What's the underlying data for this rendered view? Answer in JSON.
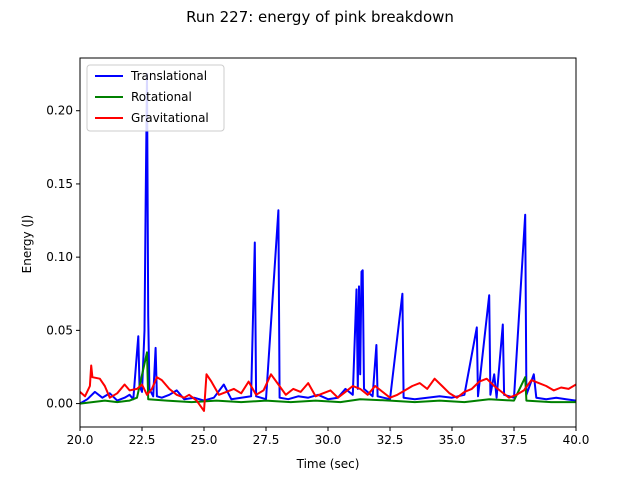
{
  "chart_data": {
    "type": "line",
    "title": "Run 227: energy of pink breakdown",
    "xlabel": "Time (sec)",
    "ylabel": "Energy (J)",
    "xlim": [
      20.0,
      40.0
    ],
    "ylim": [
      -0.016,
      0.236
    ],
    "xticks": [
      20.0,
      22.5,
      25.0,
      27.5,
      30.0,
      32.5,
      35.0,
      37.5,
      40.0
    ],
    "xtick_labels": [
      "20.0",
      "22.5",
      "25.0",
      "27.5",
      "30.0",
      "32.5",
      "35.0",
      "37.5",
      "40.0"
    ],
    "yticks": [
      0.0,
      0.05,
      0.1,
      0.15,
      0.2
    ],
    "ytick_labels": [
      "0.00",
      "0.05",
      "0.10",
      "0.15",
      "0.20"
    ],
    "grid": false,
    "legend_position": "top-left",
    "series": [
      {
        "name": "Translational",
        "color": "#0000ff",
        "points": [
          [
            20.0,
            0.0
          ],
          [
            20.3,
            0.003
          ],
          [
            20.6,
            0.008
          ],
          [
            20.9,
            0.004
          ],
          [
            21.2,
            0.007
          ],
          [
            21.5,
            0.002
          ],
          [
            21.8,
            0.004
          ],
          [
            22.0,
            0.006
          ],
          [
            22.15,
            0.003
          ],
          [
            22.3,
            0.035
          ],
          [
            22.35,
            0.046
          ],
          [
            22.4,
            0.012
          ],
          [
            22.5,
            0.008
          ],
          [
            22.6,
            0.05
          ],
          [
            22.65,
            0.14
          ],
          [
            22.7,
            0.225
          ],
          [
            22.75,
            0.06
          ],
          [
            22.8,
            0.01
          ],
          [
            22.95,
            0.005
          ],
          [
            23.05,
            0.038
          ],
          [
            23.1,
            0.005
          ],
          [
            23.3,
            0.004
          ],
          [
            23.6,
            0.006
          ],
          [
            23.9,
            0.009
          ],
          [
            24.2,
            0.003
          ],
          [
            24.6,
            0.004
          ],
          [
            25.0,
            0.002
          ],
          [
            25.4,
            0.004
          ],
          [
            25.8,
            0.013
          ],
          [
            26.1,
            0.003
          ],
          [
            26.5,
            0.004
          ],
          [
            26.9,
            0.005
          ],
          [
            27.05,
            0.11
          ],
          [
            27.1,
            0.005
          ],
          [
            27.5,
            0.003
          ],
          [
            28.0,
            0.132
          ],
          [
            28.05,
            0.004
          ],
          [
            28.4,
            0.003
          ],
          [
            28.8,
            0.005
          ],
          [
            29.2,
            0.004
          ],
          [
            29.6,
            0.006
          ],
          [
            30.0,
            0.003
          ],
          [
            30.4,
            0.004
          ],
          [
            30.7,
            0.01
          ],
          [
            31.0,
            0.006
          ],
          [
            31.15,
            0.078
          ],
          [
            31.2,
            0.01
          ],
          [
            31.25,
            0.08
          ],
          [
            31.3,
            0.02
          ],
          [
            31.35,
            0.09
          ],
          [
            31.4,
            0.091
          ],
          [
            31.45,
            0.01
          ],
          [
            31.8,
            0.005
          ],
          [
            31.95,
            0.04
          ],
          [
            32.0,
            0.005
          ],
          [
            32.5,
            0.003
          ],
          [
            33.0,
            0.075
          ],
          [
            33.05,
            0.004
          ],
          [
            33.5,
            0.003
          ],
          [
            34.0,
            0.004
          ],
          [
            34.5,
            0.005
          ],
          [
            35.0,
            0.004
          ],
          [
            35.5,
            0.006
          ],
          [
            36.0,
            0.052
          ],
          [
            36.05,
            0.005
          ],
          [
            36.5,
            0.074
          ],
          [
            36.55,
            0.006
          ],
          [
            36.7,
            0.02
          ],
          [
            36.8,
            0.004
          ],
          [
            37.05,
            0.054
          ],
          [
            37.1,
            0.006
          ],
          [
            37.5,
            0.004
          ],
          [
            37.95,
            0.129
          ],
          [
            38.0,
            0.006
          ],
          [
            38.3,
            0.02
          ],
          [
            38.4,
            0.004
          ],
          [
            38.8,
            0.003
          ],
          [
            39.2,
            0.004
          ],
          [
            39.6,
            0.003
          ],
          [
            40.0,
            0.002
          ]
        ]
      },
      {
        "name": "Rotational",
        "color": "#008000",
        "points": [
          [
            20.0,
            0.0
          ],
          [
            20.5,
            0.001
          ],
          [
            21.0,
            0.002
          ],
          [
            21.5,
            0.001
          ],
          [
            22.0,
            0.002
          ],
          [
            22.3,
            0.004
          ],
          [
            22.7,
            0.035
          ],
          [
            22.75,
            0.003
          ],
          [
            23.5,
            0.002
          ],
          [
            24.5,
            0.001
          ],
          [
            25.5,
            0.002
          ],
          [
            26.5,
            0.001
          ],
          [
            27.5,
            0.002
          ],
          [
            28.5,
            0.001
          ],
          [
            29.5,
            0.002
          ],
          [
            30.5,
            0.001
          ],
          [
            31.3,
            0.003
          ],
          [
            32.5,
            0.002
          ],
          [
            33.5,
            0.001
          ],
          [
            34.5,
            0.002
          ],
          [
            35.5,
            0.001
          ],
          [
            36.5,
            0.003
          ],
          [
            37.5,
            0.002
          ],
          [
            37.95,
            0.018
          ],
          [
            38.0,
            0.002
          ],
          [
            39.0,
            0.001
          ],
          [
            40.0,
            0.001
          ]
        ]
      },
      {
        "name": "Gravitational",
        "color": "#ff0000",
        "points": [
          [
            20.0,
            0.008
          ],
          [
            20.2,
            0.005
          ],
          [
            20.4,
            0.012
          ],
          [
            20.45,
            0.026
          ],
          [
            20.5,
            0.018
          ],
          [
            20.8,
            0.017
          ],
          [
            21.0,
            0.012
          ],
          [
            21.2,
            0.004
          ],
          [
            21.5,
            0.007
          ],
          [
            21.8,
            0.013
          ],
          [
            22.0,
            0.009
          ],
          [
            22.3,
            0.01
          ],
          [
            22.5,
            0.013
          ],
          [
            22.7,
            0.006
          ],
          [
            22.9,
            0.01
          ],
          [
            23.1,
            0.018
          ],
          [
            23.3,
            0.016
          ],
          [
            23.6,
            0.01
          ],
          [
            23.9,
            0.006
          ],
          [
            24.2,
            0.004
          ],
          [
            24.4,
            0.006
          ],
          [
            24.7,
            0.002
          ],
          [
            25.0,
            -0.005
          ],
          [
            25.1,
            0.02
          ],
          [
            25.3,
            0.015
          ],
          [
            25.6,
            0.006
          ],
          [
            25.9,
            0.008
          ],
          [
            26.2,
            0.01
          ],
          [
            26.5,
            0.007
          ],
          [
            26.8,
            0.015
          ],
          [
            27.1,
            0.006
          ],
          [
            27.4,
            0.009
          ],
          [
            27.7,
            0.02
          ],
          [
            28.0,
            0.013
          ],
          [
            28.3,
            0.006
          ],
          [
            28.6,
            0.01
          ],
          [
            28.9,
            0.008
          ],
          [
            29.2,
            0.014
          ],
          [
            29.5,
            0.005
          ],
          [
            29.8,
            0.007
          ],
          [
            30.1,
            0.009
          ],
          [
            30.4,
            0.004
          ],
          [
            30.7,
            0.008
          ],
          [
            31.0,
            0.012
          ],
          [
            31.3,
            0.01
          ],
          [
            31.6,
            0.006
          ],
          [
            31.9,
            0.012
          ],
          [
            32.2,
            0.008
          ],
          [
            32.5,
            0.004
          ],
          [
            32.8,
            0.006
          ],
          [
            33.1,
            0.009
          ],
          [
            33.4,
            0.012
          ],
          [
            33.7,
            0.014
          ],
          [
            34.0,
            0.01
          ],
          [
            34.3,
            0.017
          ],
          [
            34.6,
            0.012
          ],
          [
            34.9,
            0.007
          ],
          [
            35.2,
            0.004
          ],
          [
            35.5,
            0.008
          ],
          [
            35.8,
            0.01
          ],
          [
            36.1,
            0.015
          ],
          [
            36.4,
            0.017
          ],
          [
            36.7,
            0.012
          ],
          [
            37.0,
            0.008
          ],
          [
            37.3,
            0.004
          ],
          [
            37.6,
            0.006
          ],
          [
            37.9,
            0.009
          ],
          [
            38.2,
            0.016
          ],
          [
            38.5,
            0.014
          ],
          [
            38.8,
            0.012
          ],
          [
            39.1,
            0.009
          ],
          [
            39.4,
            0.011
          ],
          [
            39.7,
            0.01
          ],
          [
            40.0,
            0.013
          ]
        ]
      }
    ]
  }
}
